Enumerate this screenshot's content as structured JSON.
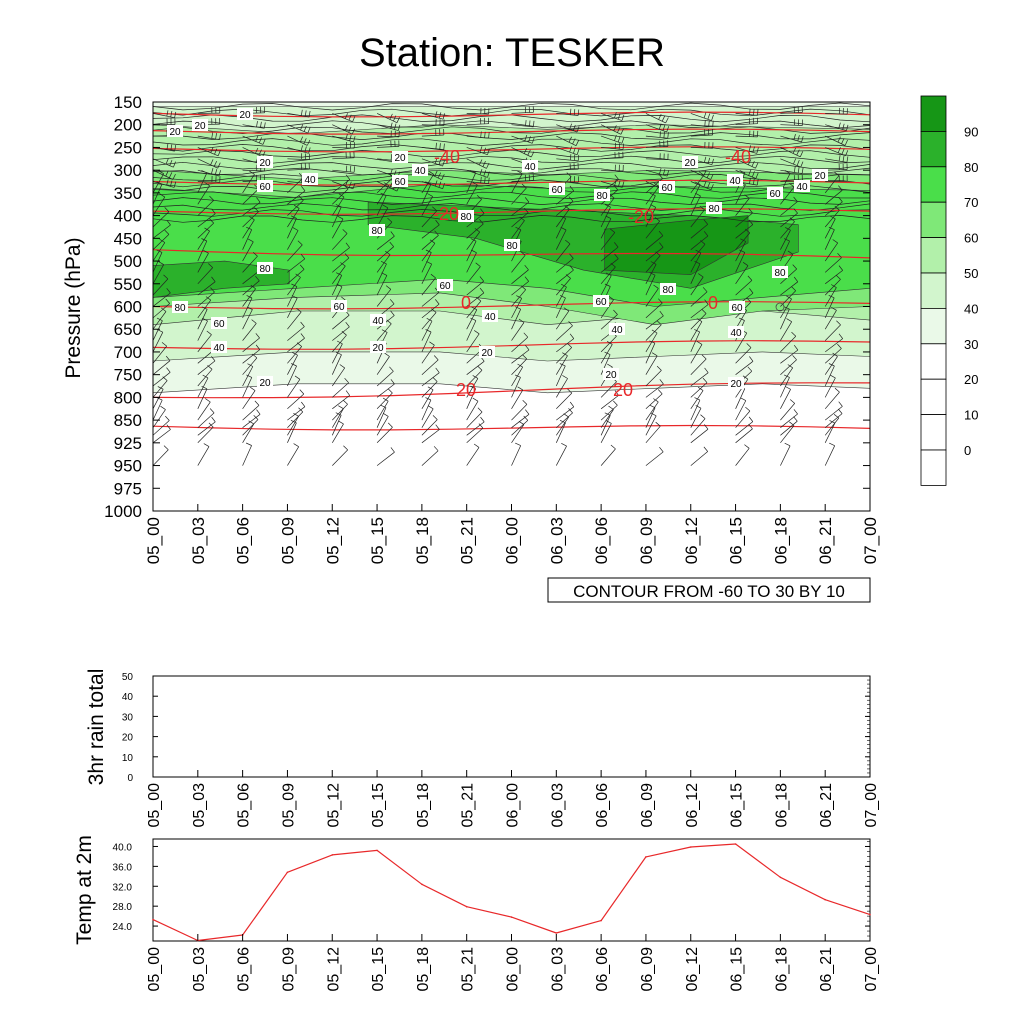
{
  "title": "Station: TESKER",
  "time_labels": [
    "05_00",
    "05_03",
    "05_06",
    "05_09",
    "05_12",
    "05_15",
    "05_18",
    "05_21",
    "06_00",
    "06_03",
    "06_06",
    "06_09",
    "06_12",
    "06_15",
    "06_18",
    "06_21",
    "07_00"
  ],
  "colors": {
    "temperature_line": "#e8282a",
    "axis": "#000000"
  },
  "chart_data": [
    {
      "type": "heatmap",
      "title": "Station: TESKER",
      "ylabel": "Pressure (hPa)",
      "xlabel": "",
      "y_ticks": [
        150,
        200,
        250,
        300,
        350,
        400,
        450,
        500,
        550,
        600,
        650,
        700,
        750,
        800,
        850,
        925,
        950,
        975,
        1000
      ],
      "y_reversed": true,
      "colorbar": {
        "labels": [
          0,
          10,
          20,
          30,
          40,
          50,
          60,
          70,
          80,
          90
        ],
        "colors": [
          "#ffffff",
          "#ffffff",
          "#ffffff",
          "#eaf9e8",
          "#d2f5cd",
          "#b2f0aa",
          "#7fe878",
          "#4ade4a",
          "#2bb12b",
          "#169616"
        ]
      },
      "contour_info": "CONTOUR FROM -60 TO 30 BY 10",
      "humidity_contour_labels": [
        "20",
        "40",
        "60",
        "80"
      ],
      "temperature_contour_labels": [
        "-40",
        "-20",
        "0",
        "20"
      ]
    },
    {
      "type": "bar",
      "ylabel": "3hr rain total",
      "ylim": [
        0,
        50
      ],
      "y_ticks": [
        0,
        10,
        20,
        30,
        40,
        50
      ],
      "values": [
        0,
        0,
        0,
        0,
        0,
        0,
        0,
        0,
        0,
        0,
        0,
        0,
        0,
        0,
        0,
        0,
        0
      ]
    },
    {
      "type": "line",
      "ylabel": "Temp at 2m",
      "ylim": [
        21.0,
        41.5
      ],
      "y_ticks": [
        "24.0",
        "28.0",
        "32.0",
        "36.0",
        "40.0"
      ],
      "series": [
        {
          "values": [
            25.3,
            21.1,
            22.2,
            34.8,
            38.3,
            39.2,
            32.4,
            27.9,
            25.8,
            22.6,
            25.1,
            37.9,
            39.9,
            40.5,
            33.8,
            29.3,
            26.3
          ]
        }
      ]
    }
  ]
}
